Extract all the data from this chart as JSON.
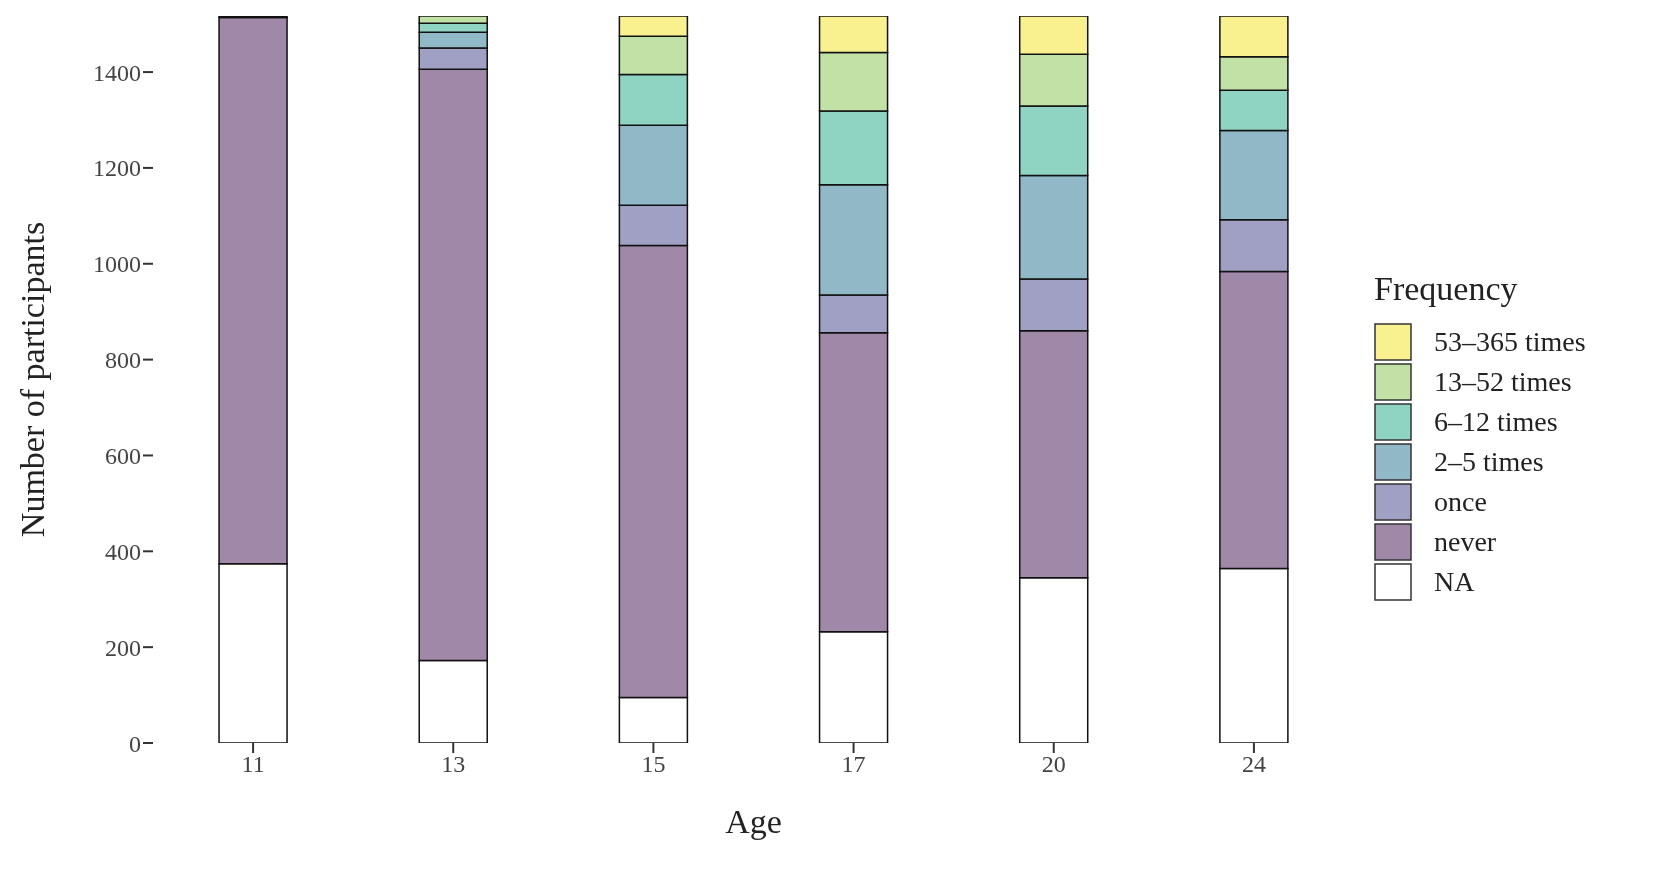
{
  "chart_data": {
    "type": "bar",
    "stacked": true,
    "xlabel": "Age",
    "ylabel": "Number of participants",
    "legend_title": "Frequency",
    "legend": "right",
    "categories": [
      "11",
      "13",
      "15",
      "17",
      "20",
      "24"
    ],
    "ylim": [
      0,
      1517
    ],
    "yticks": [
      0,
      200,
      400,
      600,
      800,
      1000,
      1200,
      1400
    ],
    "grid": false,
    "series": [
      {
        "name": "NA",
        "color": "#ffffff",
        "values": [
          374,
          172,
          95,
          232,
          345,
          364
        ]
      },
      {
        "name": "never",
        "color": "#a089a8",
        "values": [
          1140,
          1234,
          943,
          624,
          515,
          620
        ]
      },
      {
        "name": "once",
        "color": "#9fa0c3",
        "values": [
          3,
          44,
          84,
          79,
          108,
          108
        ]
      },
      {
        "name": "2–5 times",
        "color": "#90b8c6",
        "values": [
          0,
          33,
          167,
          230,
          216,
          186
        ]
      },
      {
        "name": "6–12 times",
        "color": "#8fd4c3",
        "values": [
          0,
          19,
          106,
          154,
          145,
          84
        ]
      },
      {
        "name": "13–52 times",
        "color": "#c1e1a6",
        "values": [
          0,
          15,
          80,
          122,
          108,
          70
        ]
      },
      {
        "name": "53–365 times",
        "color": "#f9f18f",
        "values": [
          0,
          0,
          42,
          76,
          80,
          85
        ]
      }
    ]
  }
}
